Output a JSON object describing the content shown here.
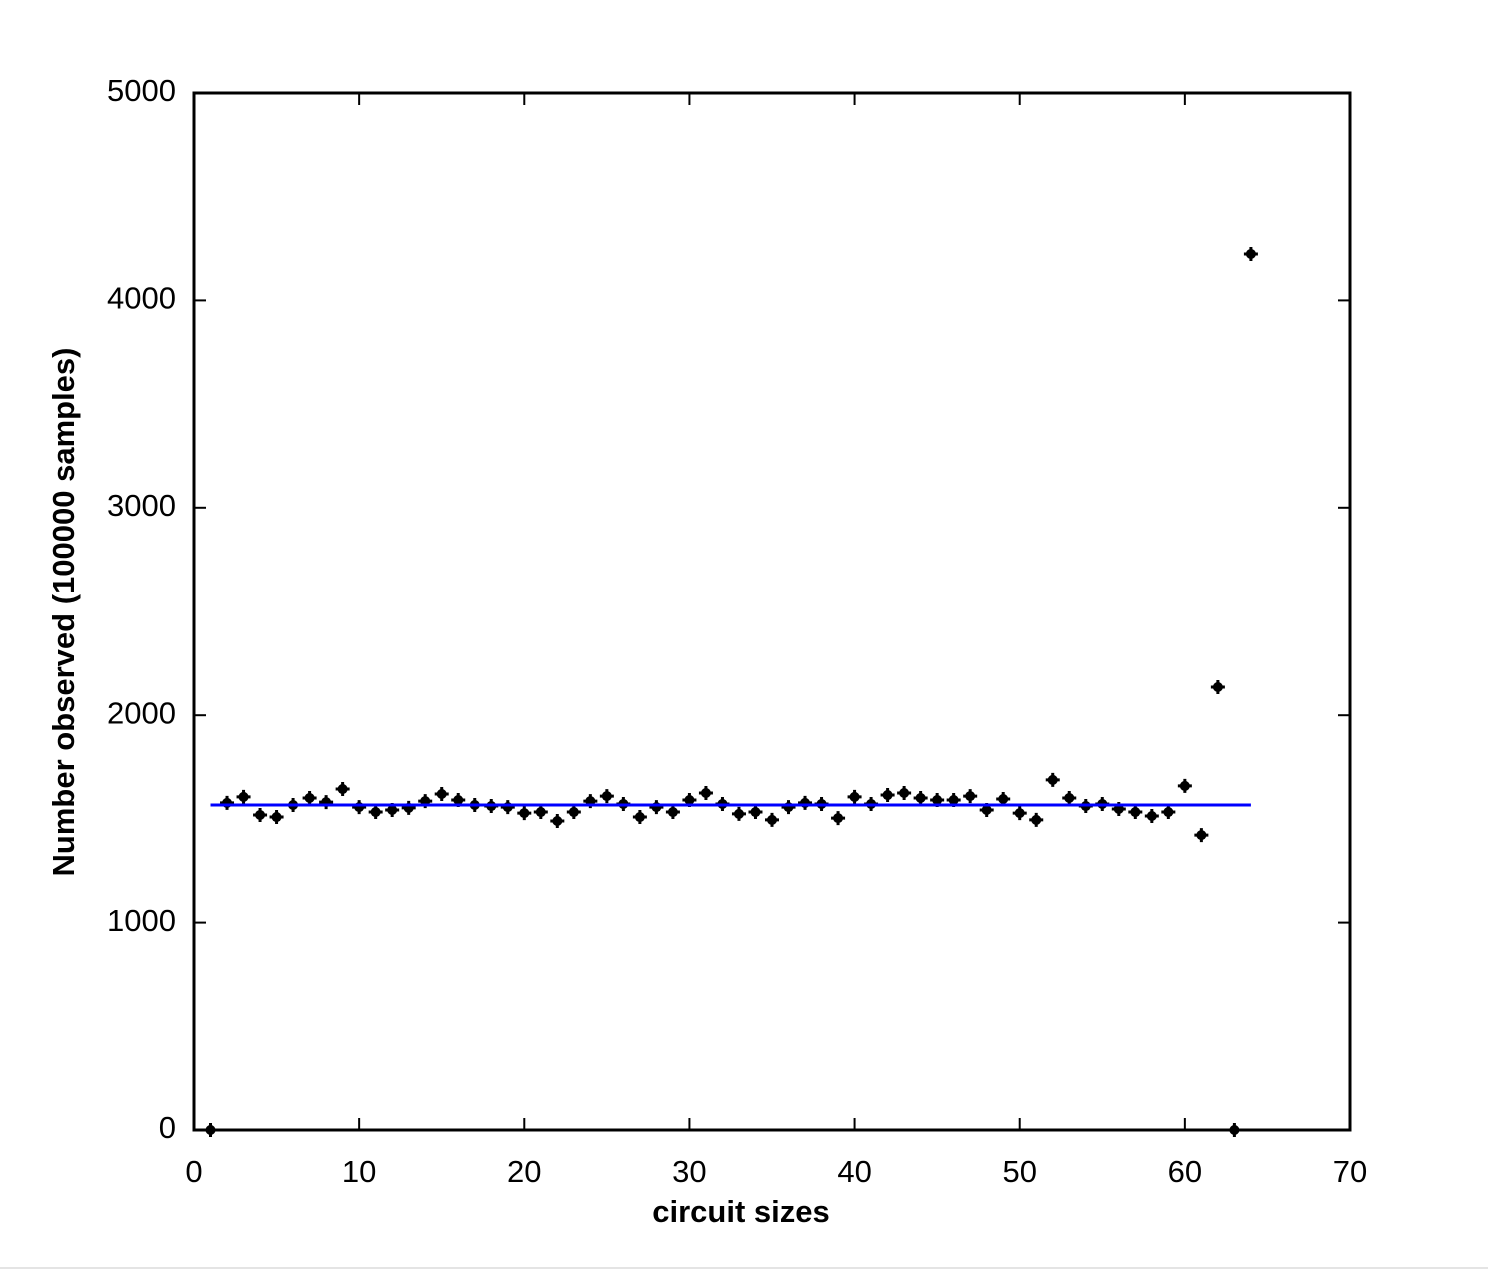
{
  "chart_data": {
    "type": "scatter",
    "xlabel": "circuit sizes",
    "ylabel": "Number observed (100000 samples)",
    "xlim": [
      0,
      70
    ],
    "xticks": [
      0,
      10,
      20,
      30,
      40,
      50,
      60,
      70
    ],
    "ylim": [
      0,
      5000
    ],
    "yticks": [
      0,
      1000,
      2000,
      3000,
      4000,
      5000
    ],
    "grid": false,
    "series": [
      {
        "color": "#000000",
        "style": "points",
        "x": [
          1,
          2,
          3,
          4,
          5,
          6,
          7,
          8,
          9,
          10,
          11,
          12,
          13,
          14,
          15,
          16,
          17,
          18,
          19,
          20,
          21,
          22,
          23,
          24,
          25,
          26,
          27,
          28,
          29,
          30,
          31,
          32,
          33,
          34,
          35,
          36,
          37,
          38,
          39,
          40,
          41,
          42,
          43,
          44,
          45,
          46,
          47,
          48,
          49,
          50,
          51,
          52,
          53,
          54,
          55,
          56,
          57,
          58,
          59,
          60,
          61,
          62,
          63,
          64
        ],
        "values": [
          0,
          1577,
          1606,
          1519,
          1509,
          1567,
          1601,
          1581,
          1644,
          1557,
          1533,
          1543,
          1553,
          1586,
          1620,
          1591,
          1567,
          1562,
          1557,
          1528,
          1533,
          1490,
          1533,
          1586,
          1610,
          1572,
          1509,
          1557,
          1533,
          1591,
          1625,
          1572,
          1524,
          1533,
          1495,
          1557,
          1577,
          1572,
          1504,
          1606,
          1572,
          1615,
          1625,
          1601,
          1591,
          1591,
          1610,
          1543,
          1596,
          1528,
          1495,
          1688,
          1601,
          1562,
          1572,
          1548,
          1533,
          1514,
          1533,
          1659,
          1422,
          2136,
          0,
          4224
        ]
      },
      {
        "color": "#0000ff",
        "style": "line",
        "x": [
          1,
          64
        ],
        "values": [
          1567,
          1567
        ]
      }
    ]
  }
}
